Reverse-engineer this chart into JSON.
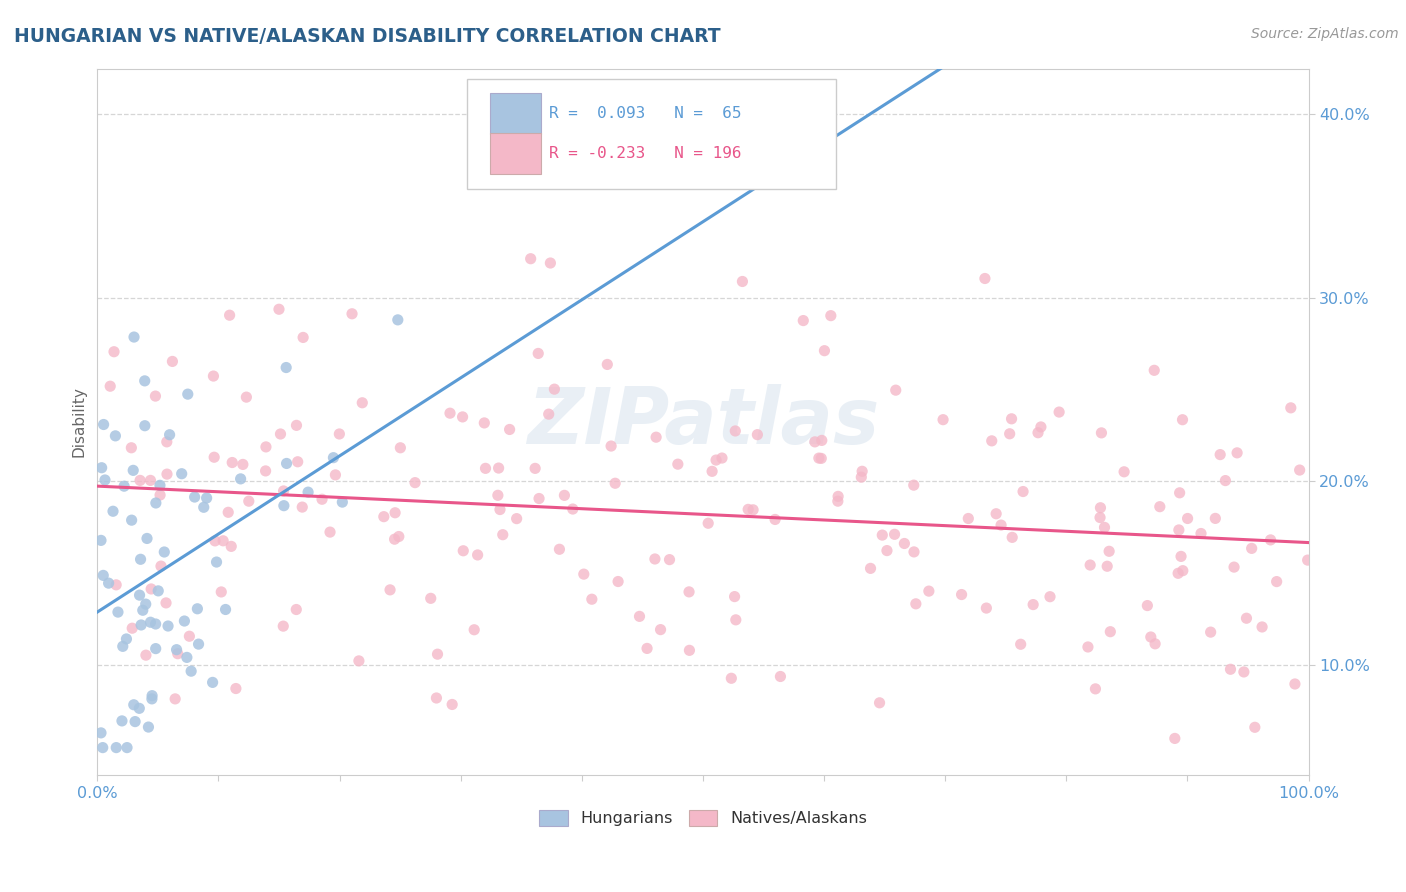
{
  "title": "HUNGARIAN VS NATIVE/ALASKAN DISABILITY CORRELATION CHART",
  "source": "Source: ZipAtlas.com",
  "ylabel": "Disability",
  "color_hungarian": "#a8c4e0",
  "color_native": "#f4b8c8",
  "line_color_hungarian": "#5b9bd5",
  "line_color_native": "#e8568a",
  "axis_tick_color": "#5b9bd5",
  "title_color": "#2c5f8a",
  "source_color": "#999999",
  "watermark_color": "#c8d8e8",
  "background_color": "#ffffff",
  "grid_color": "#cccccc",
  "legend_box_color": "#e8f0f8",
  "legend_r1_color": "#5b9bd5",
  "legend_r2_color": "#e8568a"
}
